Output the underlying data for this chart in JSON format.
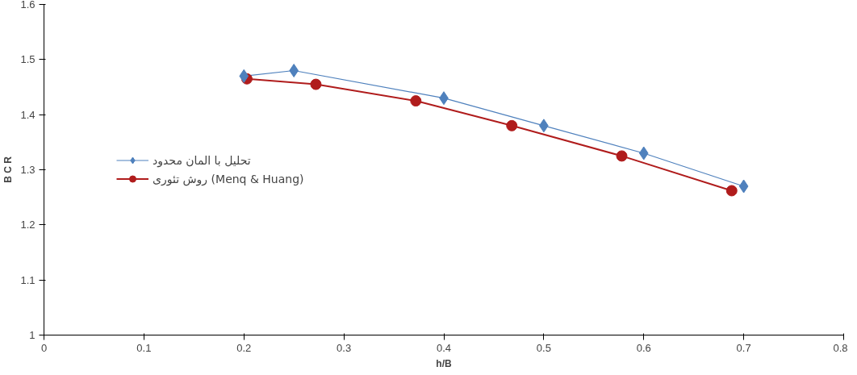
{
  "chart_data": {
    "type": "line",
    "xlabel": "h/B",
    "ylabel": "B C R",
    "xlim": [
      0,
      0.8
    ],
    "ylim": [
      1,
      1.6
    ],
    "xticks": [
      0,
      0.1,
      0.2,
      0.3,
      0.4,
      0.5,
      0.6,
      0.7,
      0.8
    ],
    "yticks": [
      1,
      1.1,
      1.2,
      1.3,
      1.4,
      1.5,
      1.6
    ],
    "grid": false,
    "legend": "left",
    "series": [
      {
        "name": "تحلیل با المان محدود",
        "color": "#4f81bd",
        "marker": "diamond",
        "x": [
          0.2,
          0.25,
          0.4,
          0.5,
          0.6,
          0.7
        ],
        "values": [
          1.47,
          1.48,
          1.43,
          1.38,
          1.33,
          1.27
        ]
      },
      {
        "name": "روش تئوری (Menq & Huang)",
        "color": "#b01c1c",
        "marker": "circle",
        "x": [
          0.203,
          0.272,
          0.372,
          0.468,
          0.578,
          0.688
        ],
        "values": [
          1.465,
          1.455,
          1.425,
          1.38,
          1.325,
          1.262
        ]
      }
    ]
  }
}
